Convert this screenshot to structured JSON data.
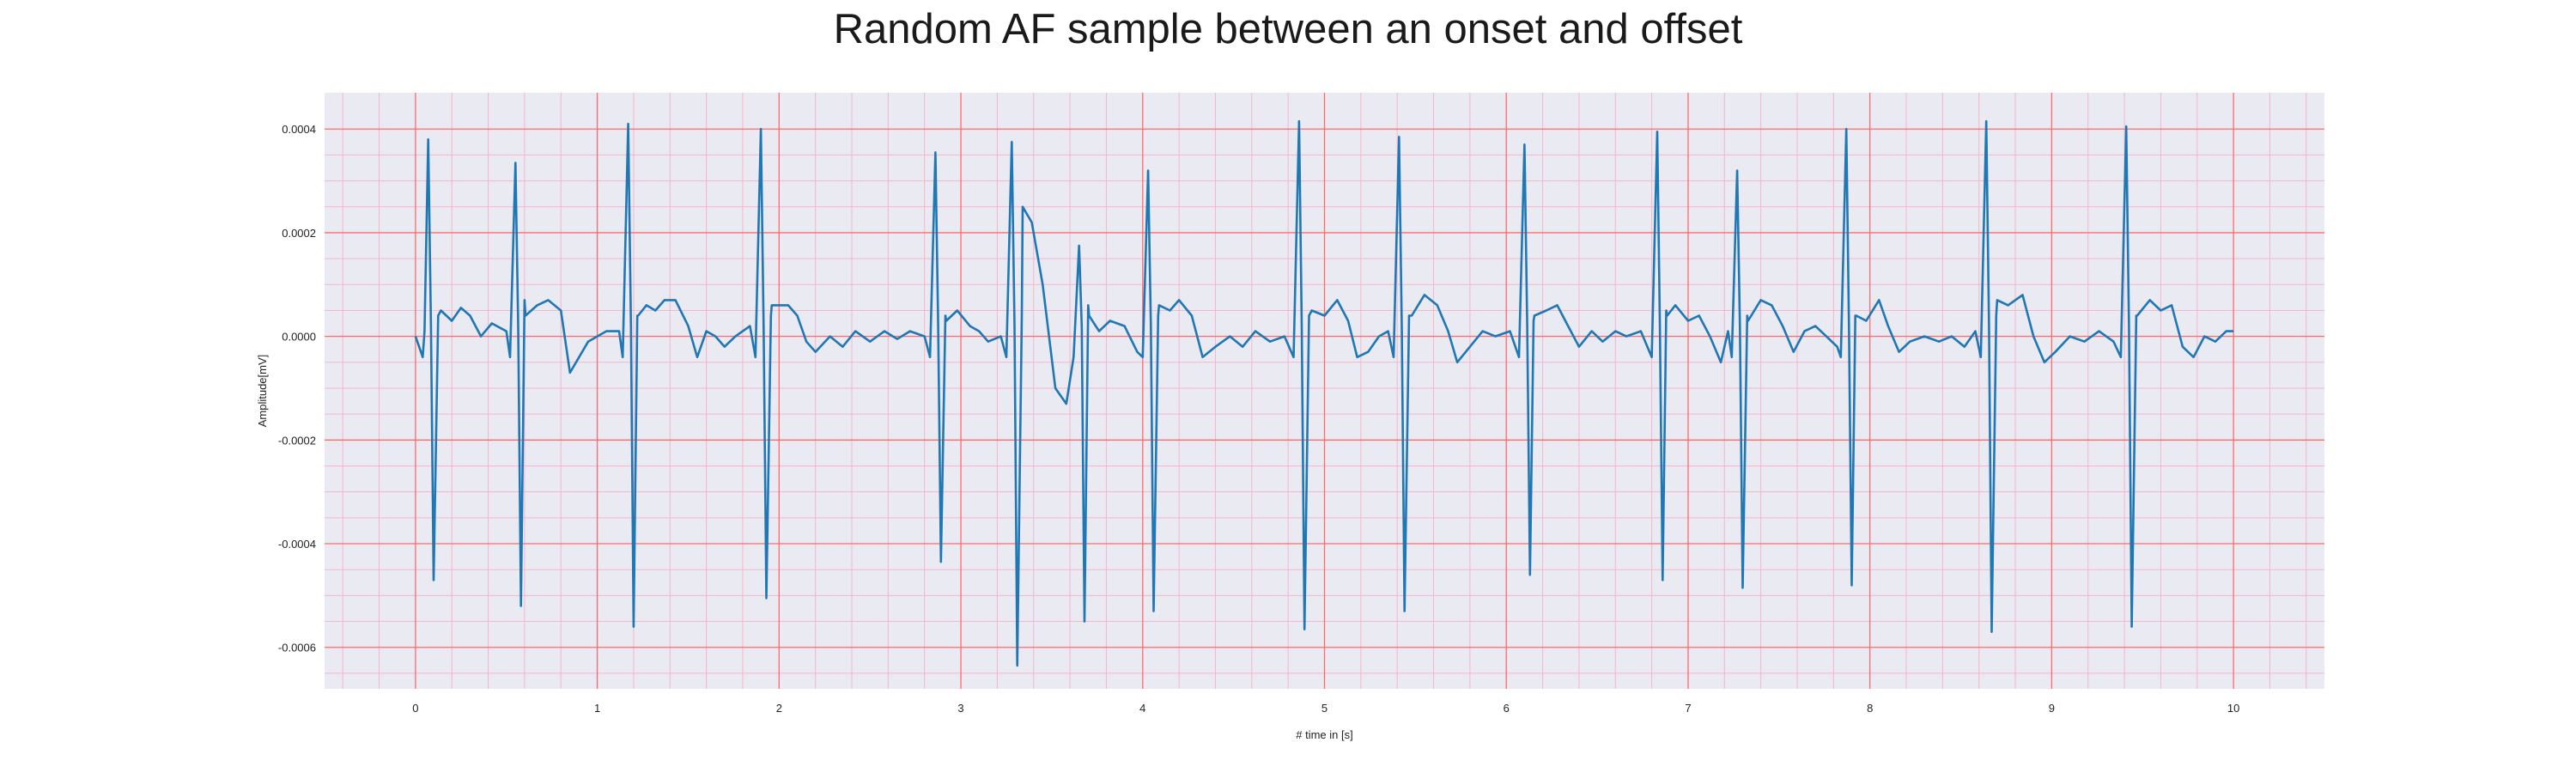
{
  "chart_data": {
    "type": "line",
    "title": "Random AF sample between an onset and offset",
    "xlabel": "# time in [s]",
    "ylabel": "Amplitude[mV]",
    "xlim": [
      -0.5,
      10.5
    ],
    "ylim": [
      -0.00068,
      0.00047
    ],
    "x_ticks": [
      0,
      1,
      2,
      3,
      4,
      5,
      6,
      7,
      8,
      9,
      10
    ],
    "x_tick_labels": [
      "0",
      "1",
      "2",
      "3",
      "4",
      "5",
      "6",
      "7",
      "8",
      "9",
      "10"
    ],
    "y_ticks": [
      -0.0006,
      -0.0004,
      -0.0002,
      0.0,
      0.0002,
      0.0004
    ],
    "y_tick_labels": [
      "-0.0006",
      "-0.0004",
      "-0.0002",
      "0.0000",
      "0.0002",
      "0.0004"
    ],
    "grid": true,
    "minor_grid": true,
    "colors": {
      "line": "#1f77b4",
      "plot_background": "#eaeaf2",
      "major_grid": "#ff6b6b",
      "minor_grid": "#f4b6c8"
    },
    "series": [
      {
        "beats": [
          {
            "t": 0.07,
            "r": 0.00038,
            "s": -0.00047
          },
          {
            "t": 0.55,
            "r": 0.000335,
            "s": -0.00052
          },
          {
            "t": 1.17,
            "r": 0.00041,
            "s": -0.00056
          },
          {
            "t": 1.9,
            "r": 0.0004,
            "s": -0.000505
          },
          {
            "t": 2.86,
            "r": 0.000355,
            "s": -0.000435
          },
          {
            "t": 3.28,
            "r": 0.000375,
            "s": -0.000635
          },
          {
            "t": 3.65,
            "r": 0.000175,
            "s": -0.00055
          },
          {
            "t": 4.03,
            "r": 0.00032,
            "s": -0.00053
          },
          {
            "t": 4.86,
            "r": 0.000415,
            "s": -0.000565
          },
          {
            "t": 5.41,
            "r": 0.000385,
            "s": -0.00053
          },
          {
            "t": 6.1,
            "r": 0.00037,
            "s": -0.00046
          },
          {
            "t": 6.83,
            "r": 0.000395,
            "s": -0.00047
          },
          {
            "t": 7.27,
            "r": 0.00032,
            "s": -0.000485
          },
          {
            "t": 7.87,
            "r": 0.0004,
            "s": -0.00048
          },
          {
            "t": 8.64,
            "r": 0.000415,
            "s": -0.00057
          },
          {
            "t": 9.41,
            "r": 0.000405,
            "s": -0.00056
          }
        ],
        "baseline": [
          [
            0.0,
            0.0
          ],
          [
            0.05,
            1e-05
          ],
          [
            0.14,
            5e-05
          ],
          [
            0.2,
            3e-05
          ],
          [
            0.25,
            5.5e-05
          ],
          [
            0.3,
            4e-05
          ],
          [
            0.36,
            0.0
          ],
          [
            0.42,
            2.5e-05
          ],
          [
            0.5,
            1e-05
          ],
          [
            0.6,
            7e-05
          ],
          [
            0.67,
            6e-05
          ],
          [
            0.73,
            7e-05
          ],
          [
            0.8,
            5e-05
          ],
          [
            0.85,
            -7e-05
          ],
          [
            0.9,
            -4e-05
          ],
          [
            0.95,
            -1e-05
          ],
          [
            1.0,
            0.0
          ],
          [
            1.05,
            1e-05
          ],
          [
            1.12,
            1e-05
          ],
          [
            1.22,
            4e-05
          ],
          [
            1.27,
            6e-05
          ],
          [
            1.32,
            5e-05
          ],
          [
            1.37,
            7e-05
          ],
          [
            1.43,
            7e-05
          ],
          [
            1.5,
            2e-05
          ],
          [
            1.55,
            -4e-05
          ],
          [
            1.6,
            1e-05
          ],
          [
            1.65,
            0.0
          ],
          [
            1.7,
            -2e-05
          ],
          [
            1.76,
            0.0
          ],
          [
            1.84,
            2e-05
          ],
          [
            1.96,
            6e-05
          ],
          [
            2.05,
            6e-05
          ],
          [
            2.1,
            4e-05
          ],
          [
            2.15,
            -1e-05
          ],
          [
            2.2,
            -3e-05
          ],
          [
            2.28,
            0.0
          ],
          [
            2.35,
            -2e-05
          ],
          [
            2.42,
            1e-05
          ],
          [
            2.5,
            -1e-05
          ],
          [
            2.58,
            1e-05
          ],
          [
            2.65,
            -5e-06
          ],
          [
            2.72,
            1e-05
          ],
          [
            2.8,
            0.0
          ],
          [
            2.92,
            3e-05
          ],
          [
            2.98,
            5e-05
          ],
          [
            3.05,
            2e-05
          ],
          [
            3.1,
            1e-05
          ],
          [
            3.15,
            -1e-05
          ],
          [
            3.22,
            0.0
          ],
          [
            3.34,
            0.00025
          ],
          [
            3.39,
            0.00022
          ],
          [
            3.45,
            0.0001
          ],
          [
            3.52,
            -0.0001
          ],
          [
            3.58,
            -0.00013
          ],
          [
            3.7,
            6e-05
          ],
          [
            3.76,
            1e-05
          ],
          [
            3.82,
            3e-05
          ],
          [
            3.9,
            2e-05
          ],
          [
            3.97,
            -3e-05
          ],
          [
            4.09,
            6e-05
          ],
          [
            4.15,
            5e-05
          ],
          [
            4.2,
            7e-05
          ],
          [
            4.27,
            4e-05
          ],
          [
            4.33,
            -4e-05
          ],
          [
            4.4,
            -2e-05
          ],
          [
            4.48,
            0.0
          ],
          [
            4.55,
            -2e-05
          ],
          [
            4.62,
            1e-05
          ],
          [
            4.7,
            -1e-05
          ],
          [
            4.78,
            0.0
          ],
          [
            4.93,
            5e-05
          ],
          [
            5.0,
            4e-05
          ],
          [
            5.07,
            7e-05
          ],
          [
            5.13,
            3e-05
          ],
          [
            5.18,
            -4e-05
          ],
          [
            5.24,
            -3e-05
          ],
          [
            5.3,
            0.0
          ],
          [
            5.35,
            1e-05
          ],
          [
            5.48,
            4e-05
          ],
          [
            5.55,
            8e-05
          ],
          [
            5.62,
            6e-05
          ],
          [
            5.68,
            1e-05
          ],
          [
            5.73,
            -5e-05
          ],
          [
            5.8,
            -2e-05
          ],
          [
            5.87,
            1e-05
          ],
          [
            5.94,
            0.0
          ],
          [
            6.02,
            1e-05
          ],
          [
            6.15,
            3e-05
          ],
          [
            6.22,
            5e-05
          ],
          [
            6.28,
            6e-05
          ],
          [
            6.34,
            2e-05
          ],
          [
            6.4,
            -2e-05
          ],
          [
            6.47,
            1e-05
          ],
          [
            6.53,
            -1e-05
          ],
          [
            6.6,
            1e-05
          ],
          [
            6.66,
            0.0
          ],
          [
            6.74,
            1e-05
          ],
          [
            6.88,
            5e-05
          ],
          [
            6.93,
            6e-05
          ],
          [
            7.0,
            3e-05
          ],
          [
            7.06,
            4e-05
          ],
          [
            7.12,
            0.0
          ],
          [
            7.18,
            -5e-05
          ],
          [
            7.22,
            1e-05
          ],
          [
            7.33,
            3e-05
          ],
          [
            7.4,
            7e-05
          ],
          [
            7.46,
            6e-05
          ],
          [
            7.52,
            2e-05
          ],
          [
            7.58,
            -3e-05
          ],
          [
            7.64,
            1e-05
          ],
          [
            7.7,
            2e-05
          ],
          [
            7.76,
            0.0
          ],
          [
            7.82,
            -2e-05
          ],
          [
            7.92,
            4e-05
          ],
          [
            7.98,
            3e-05
          ],
          [
            8.05,
            7e-05
          ],
          [
            8.1,
            2e-05
          ],
          [
            8.16,
            -3e-05
          ],
          [
            8.22,
            -1e-05
          ],
          [
            8.3,
            0.0
          ],
          [
            8.38,
            -1e-05
          ],
          [
            8.45,
            0.0
          ],
          [
            8.52,
            -2e-05
          ],
          [
            8.58,
            1e-05
          ],
          [
            8.7,
            7e-05
          ],
          [
            8.76,
            6e-05
          ],
          [
            8.84,
            8e-05
          ],
          [
            8.9,
            0.0
          ],
          [
            8.96,
            -5e-05
          ],
          [
            9.02,
            -3e-05
          ],
          [
            9.1,
            0.0
          ],
          [
            9.18,
            -1e-05
          ],
          [
            9.26,
            1e-05
          ],
          [
            9.34,
            -1e-05
          ],
          [
            9.47,
            4e-05
          ],
          [
            9.54,
            7e-05
          ],
          [
            9.6,
            5e-05
          ],
          [
            9.66,
            6e-05
          ],
          [
            9.72,
            -2e-05
          ],
          [
            9.78,
            -4e-05
          ],
          [
            9.84,
            0.0
          ],
          [
            9.9,
            -1e-05
          ],
          [
            9.96,
            1e-05
          ],
          [
            10.0,
            1e-05
          ]
        ]
      }
    ]
  }
}
